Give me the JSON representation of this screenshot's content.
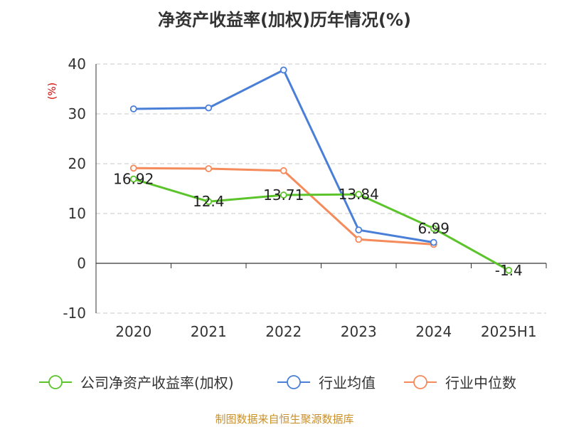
{
  "chart_data": {
    "type": "line",
    "title": "净资产收益率(加权)历年情况(%)",
    "ylabel": "(%)",
    "xlabel": "",
    "categories": [
      "2020",
      "2021",
      "2022",
      "2023",
      "2024",
      "2025H1"
    ],
    "ylim": [
      -10,
      40
    ],
    "yticks": [
      -10,
      0,
      10,
      20,
      30,
      40
    ],
    "grid": true,
    "legend_position": "bottom",
    "series": [
      {
        "name": "公司净资产收益率(加权)",
        "color": "#5cc42b",
        "values": [
          16.92,
          12.4,
          13.71,
          13.84,
          6.99,
          -1.4
        ],
        "labels": [
          "16.92",
          "12.4",
          "13.71",
          "13.84",
          "6.99",
          "-1.4"
        ]
      },
      {
        "name": "行业均值",
        "color": "#4a7fd8",
        "values": [
          31.0,
          31.2,
          38.8,
          6.7,
          4.2,
          null
        ]
      },
      {
        "name": "行业中位数",
        "color": "#f58a5a",
        "values": [
          19.1,
          19.0,
          18.6,
          4.8,
          3.8,
          null
        ]
      }
    ]
  },
  "source_note": "制图数据来自恒生聚源数据库"
}
